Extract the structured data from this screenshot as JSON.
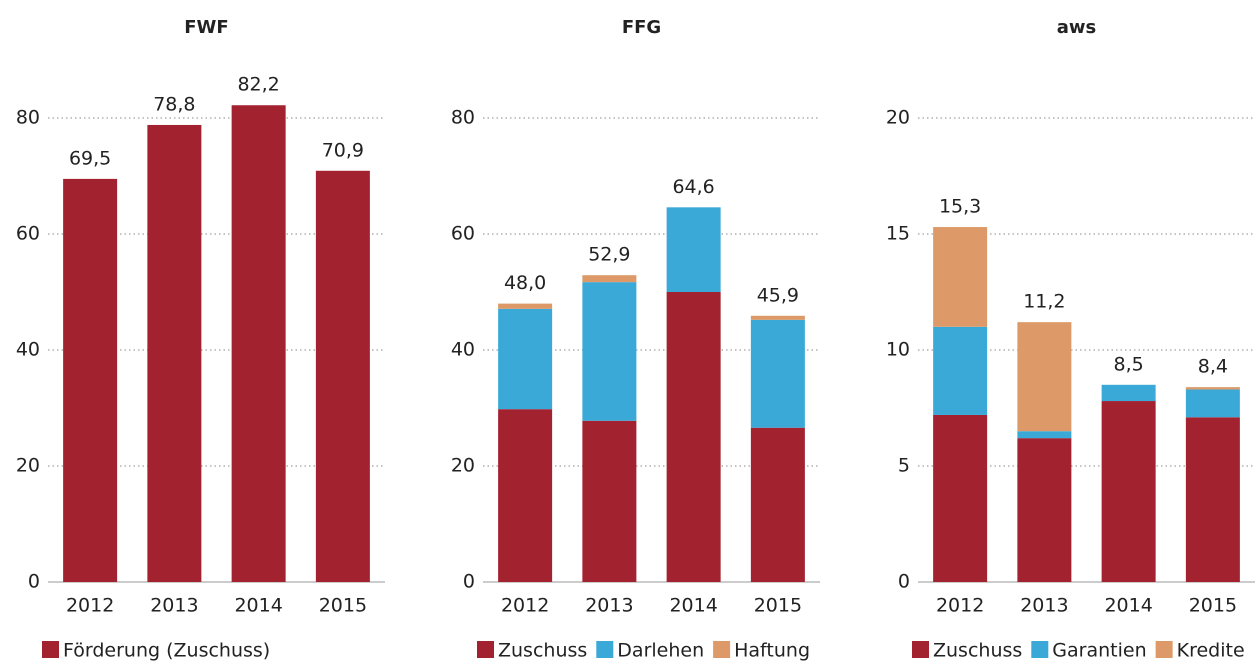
{
  "chart_data": [
    {
      "type": "bar",
      "title": "FWF",
      "categories": [
        "2012",
        "2013",
        "2014",
        "2015"
      ],
      "series": [
        {
          "name": "Förderung (Zuschuss)",
          "color": "#a3222f",
          "values": [
            69.5,
            78.8,
            82.2,
            70.9
          ],
          "value_labels": [
            "69,5",
            "78,8",
            "82,2",
            "70,9"
          ]
        }
      ],
      "ylim": [
        0,
        86
      ],
      "yticks": [
        0,
        20,
        40,
        60,
        80
      ],
      "grid": true,
      "legend": "bottom"
    },
    {
      "type": "bar",
      "stacked": true,
      "title": "FFG",
      "categories": [
        "2012",
        "2013",
        "2014",
        "2015"
      ],
      "series": [
        {
          "name": "Zuschuss",
          "color": "#a3222f",
          "values": [
            29.8,
            27.8,
            50.0,
            26.6
          ]
        },
        {
          "name": "Darlehen",
          "color": "#3ba9d8",
          "values": [
            17.3,
            23.9,
            14.6,
            18.6
          ]
        },
        {
          "name": "Haftung",
          "color": "#dd9a68",
          "values": [
            0.9,
            1.2,
            0,
            0.7
          ]
        }
      ],
      "totals": [
        48.0,
        52.9,
        64.6,
        45.9
      ],
      "total_labels": [
        "48,0",
        "52,9",
        "64,6",
        "45,9"
      ],
      "ylim": [
        0,
        86
      ],
      "yticks": [
        0,
        20,
        40,
        60,
        80
      ],
      "grid": true,
      "legend": "bottom"
    },
    {
      "type": "bar",
      "stacked": true,
      "title": "aws",
      "categories": [
        "2012",
        "2013",
        "2014",
        "2015"
      ],
      "series": [
        {
          "name": "Zuschuss",
          "color": "#a3222f",
          "values": [
            7.2,
            6.2,
            7.8,
            7.1
          ]
        },
        {
          "name": "Garantien",
          "color": "#3ba9d8",
          "values": [
            3.8,
            0.3,
            0.7,
            1.2
          ]
        },
        {
          "name": "Kredite",
          "color": "#dd9a68",
          "values": [
            4.3,
            4.7,
            0,
            0.1
          ]
        }
      ],
      "totals": [
        15.3,
        11.2,
        8.5,
        8.4
      ],
      "total_labels": [
        "15,3",
        "11,2",
        "8,5",
        "8,4"
      ],
      "ylim": [
        0,
        21.5
      ],
      "yticks": [
        0,
        5,
        10,
        15,
        20
      ],
      "grid": true,
      "legend": "bottom"
    }
  ]
}
